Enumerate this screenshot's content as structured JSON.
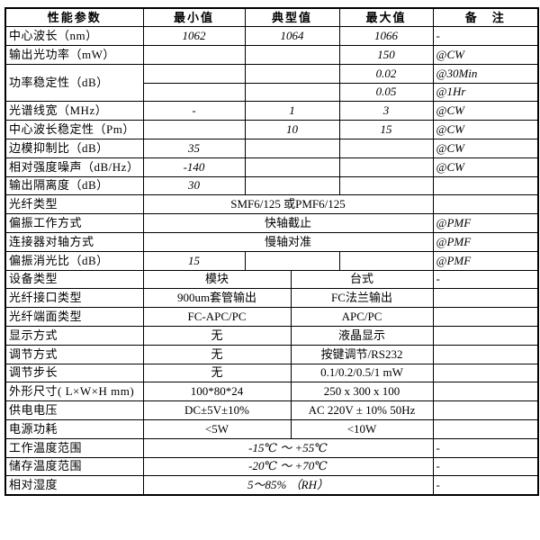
{
  "page": {
    "background_color": "#ffffff",
    "border_color": "#000000",
    "text_color": "#000000"
  },
  "table": {
    "rows": [
      {
        "is_header": true,
        "cells": [
          {
            "text": "性能参数",
            "kind": "header"
          },
          {
            "text": "最小值",
            "kind": "header"
          },
          {
            "text": "典型值",
            "kind": "header",
            "colspan": 2
          },
          {
            "text": "最大值",
            "kind": "header"
          },
          {
            "text": "备　注",
            "kind": "header"
          }
        ]
      },
      {
        "cells": [
          {
            "text": "中心波长（nm）",
            "kind": "label"
          },
          {
            "text": "1062",
            "kind": "value"
          },
          {
            "text": "1064",
            "kind": "value",
            "colspan": 2
          },
          {
            "text": "1066",
            "kind": "value"
          },
          {
            "text": "-",
            "kind": "remark"
          }
        ]
      },
      {
        "cells": [
          {
            "text": "输出光功率（mW）",
            "kind": "label"
          },
          {
            "text": "",
            "kind": "value"
          },
          {
            "text": "",
            "kind": "value",
            "colspan": 2
          },
          {
            "text": "150",
            "kind": "value"
          },
          {
            "text": "@CW",
            "kind": "remark"
          }
        ]
      },
      {
        "cells": [
          {
            "text": "功率稳定性（dB）",
            "kind": "label",
            "rowspan": 2
          },
          {
            "text": "",
            "kind": "value"
          },
          {
            "text": "",
            "kind": "value",
            "colspan": 2
          },
          {
            "text": "0.02",
            "kind": "value"
          },
          {
            "text": "@30Min",
            "kind": "remark"
          }
        ]
      },
      {
        "cells": [
          {
            "text": "",
            "kind": "value"
          },
          {
            "text": "",
            "kind": "value",
            "colspan": 2
          },
          {
            "text": "0.05",
            "kind": "value"
          },
          {
            "text": "@1Hr",
            "kind": "remark"
          }
        ]
      },
      {
        "cells": [
          {
            "text": "光谱线宽（MHz）",
            "kind": "label"
          },
          {
            "text": "-",
            "kind": "value"
          },
          {
            "text": "1",
            "kind": "value",
            "colspan": 2
          },
          {
            "text": "3",
            "kind": "value"
          },
          {
            "text": "@CW",
            "kind": "remark"
          }
        ]
      },
      {
        "cells": [
          {
            "text": "中心波长稳定性（Pm）",
            "kind": "label"
          },
          {
            "text": "",
            "kind": "value"
          },
          {
            "text": "10",
            "kind": "value",
            "colspan": 2
          },
          {
            "text": "15",
            "kind": "value"
          },
          {
            "text": "@CW",
            "kind": "remark"
          }
        ]
      },
      {
        "cells": [
          {
            "text": "边模抑制比（dB）",
            "kind": "label"
          },
          {
            "text": "35",
            "kind": "value"
          },
          {
            "text": "",
            "kind": "value",
            "colspan": 2
          },
          {
            "text": "",
            "kind": "value"
          },
          {
            "text": "@CW",
            "kind": "remark"
          }
        ]
      },
      {
        "cells": [
          {
            "text": "相对强度噪声（dB/Hz）",
            "kind": "label"
          },
          {
            "text": "-140",
            "kind": "value"
          },
          {
            "text": "",
            "kind": "value",
            "colspan": 2
          },
          {
            "text": "",
            "kind": "value"
          },
          {
            "text": "@CW",
            "kind": "remark"
          }
        ]
      },
      {
        "cells": [
          {
            "text": "输出隔离度（dB）",
            "kind": "label"
          },
          {
            "text": "30",
            "kind": "value"
          },
          {
            "text": "",
            "kind": "value",
            "colspan": 2
          },
          {
            "text": "",
            "kind": "value"
          },
          {
            "text": "",
            "kind": "remark"
          }
        ]
      },
      {
        "cells": [
          {
            "text": "光纤类型",
            "kind": "label"
          },
          {
            "text": "SMF6/125 或PMF6/125",
            "kind": "plain",
            "colspan": 4
          },
          {
            "text": "",
            "kind": "remark"
          }
        ]
      },
      {
        "cells": [
          {
            "text": "偏振工作方式",
            "kind": "label"
          },
          {
            "text": "快轴截止",
            "kind": "plain",
            "colspan": 4
          },
          {
            "text": "@PMF",
            "kind": "remark"
          }
        ]
      },
      {
        "cells": [
          {
            "text": "连接器对轴方式",
            "kind": "label"
          },
          {
            "text": "慢轴对准",
            "kind": "plain",
            "colspan": 4
          },
          {
            "text": "@PMF",
            "kind": "remark"
          }
        ]
      },
      {
        "cells": [
          {
            "text": "偏振消光比（dB）",
            "kind": "label"
          },
          {
            "text": "15",
            "kind": "value"
          },
          {
            "text": "",
            "kind": "value",
            "colspan": 2
          },
          {
            "text": "",
            "kind": "value"
          },
          {
            "text": "@PMF",
            "kind": "remark"
          }
        ]
      },
      {
        "cells": [
          {
            "text": "设备类型",
            "kind": "label"
          },
          {
            "text": "模块",
            "kind": "plain",
            "colspan": 2
          },
          {
            "text": "台式",
            "kind": "plain",
            "colspan": 2
          },
          {
            "text": "-",
            "kind": "remark"
          }
        ]
      },
      {
        "cells": [
          {
            "text": "光纤接口类型",
            "kind": "label"
          },
          {
            "text": "900um套管输出",
            "kind": "plain",
            "colspan": 2
          },
          {
            "text": "FC法兰输出",
            "kind": "plain",
            "colspan": 2
          },
          {
            "text": "",
            "kind": "remark"
          }
        ]
      },
      {
        "cells": [
          {
            "text": "光纤端面类型",
            "kind": "label"
          },
          {
            "text": "FC-APC/PC",
            "kind": "plain",
            "colspan": 2
          },
          {
            "text": "APC/PC",
            "kind": "plain",
            "colspan": 2
          },
          {
            "text": "",
            "kind": "remark"
          }
        ]
      },
      {
        "cells": [
          {
            "text": "显示方式",
            "kind": "label"
          },
          {
            "text": "无",
            "kind": "plain",
            "colspan": 2
          },
          {
            "text": "液晶显示",
            "kind": "plain",
            "colspan": 2
          },
          {
            "text": "",
            "kind": "remark"
          }
        ]
      },
      {
        "cells": [
          {
            "text": "调节方式",
            "kind": "label"
          },
          {
            "text": "无",
            "kind": "plain",
            "colspan": 2
          },
          {
            "text": "按键调节/RS232",
            "kind": "plain",
            "colspan": 2
          },
          {
            "text": "",
            "kind": "remark"
          }
        ]
      },
      {
        "cells": [
          {
            "text": "调节步长",
            "kind": "label"
          },
          {
            "text": "无",
            "kind": "plain",
            "colspan": 2
          },
          {
            "text": "0.1/0.2/0.5/1 mW",
            "kind": "plain",
            "colspan": 2
          },
          {
            "text": "",
            "kind": "remark"
          }
        ]
      },
      {
        "cells": [
          {
            "text": "外形尺寸( L×W×H mm)",
            "kind": "label"
          },
          {
            "text": "100*80*24",
            "kind": "plain",
            "colspan": 2
          },
          {
            "text": "250 x 300 x 100",
            "kind": "plain",
            "colspan": 2
          },
          {
            "text": "",
            "kind": "remark"
          }
        ]
      },
      {
        "cells": [
          {
            "text": "供电电压",
            "kind": "label"
          },
          {
            "text": "DC±5V±10%",
            "kind": "plain",
            "colspan": 2
          },
          {
            "text": "AC 220V ± 10% 50Hz",
            "kind": "plain",
            "colspan": 2
          },
          {
            "text": "",
            "kind": "remark"
          }
        ]
      },
      {
        "cells": [
          {
            "text": "电源功耗",
            "kind": "label"
          },
          {
            "text": "<5W",
            "kind": "plain",
            "colspan": 2
          },
          {
            "text": "<10W",
            "kind": "plain",
            "colspan": 2
          },
          {
            "text": "",
            "kind": "remark"
          }
        ]
      },
      {
        "cells": [
          {
            "text": "工作温度范围",
            "kind": "label"
          },
          {
            "text": "-15℃ ～ +55℃",
            "kind": "value",
            "colspan": 4
          },
          {
            "text": "-",
            "kind": "remark"
          }
        ]
      },
      {
        "cells": [
          {
            "text": "储存温度范围",
            "kind": "label"
          },
          {
            "text": "-20℃ ～ +70℃",
            "kind": "value",
            "colspan": 4
          },
          {
            "text": "-",
            "kind": "remark"
          }
        ]
      },
      {
        "cells": [
          {
            "text": "相对湿度",
            "kind": "label"
          },
          {
            "text": "5～85%  （RH）",
            "kind": "value",
            "colspan": 4
          },
          {
            "text": "-",
            "kind": "remark"
          }
        ]
      }
    ]
  }
}
